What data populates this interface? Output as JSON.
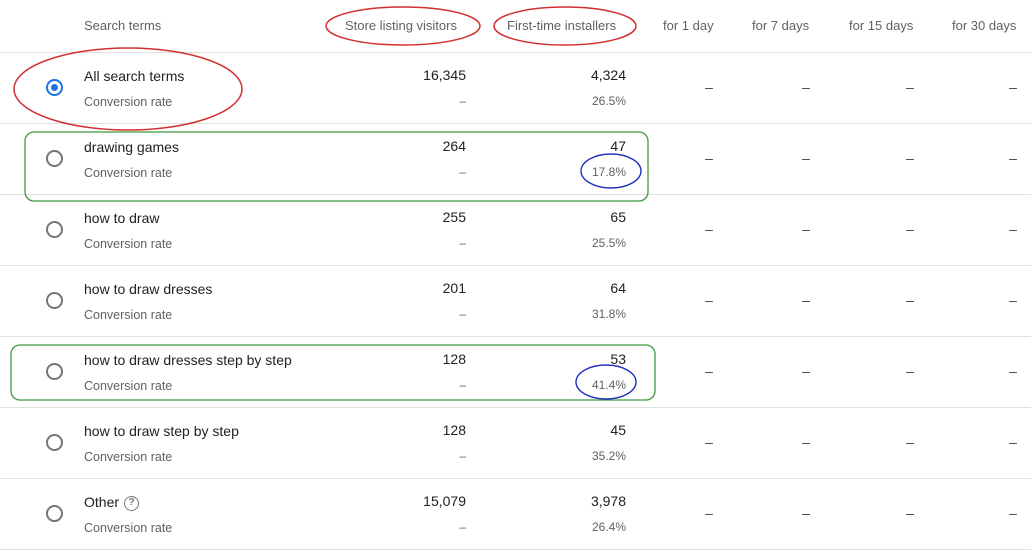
{
  "header": {
    "col_term": "Search terms",
    "col_visitors": "Store listing visitors",
    "col_installers": "First-time installers",
    "col_1day": "for 1 day",
    "col_7days": "for 7 days",
    "col_15days": "for 15 days",
    "col_30days": "for 30 days"
  },
  "rows": [
    {
      "term": "All search terms",
      "conv_label": "Conversion rate",
      "visitors": "16,345",
      "visitors_sub": "–",
      "installers": "4,324",
      "rate": "26.5%",
      "d1": "–",
      "d7": "–",
      "d15": "–",
      "d30": "–",
      "selected": true
    },
    {
      "term": "drawing games",
      "conv_label": "Conversion rate",
      "visitors": "264",
      "visitors_sub": "–",
      "installers": "47",
      "rate": "17.8%",
      "d1": "–",
      "d7": "–",
      "d15": "–",
      "d30": "–",
      "selected": false
    },
    {
      "term": "how to draw",
      "conv_label": "Conversion rate",
      "visitors": "255",
      "visitors_sub": "–",
      "installers": "65",
      "rate": "25.5%",
      "d1": "–",
      "d7": "–",
      "d15": "–",
      "d30": "–",
      "selected": false
    },
    {
      "term": "how to draw dresses",
      "conv_label": "Conversion rate",
      "visitors": "201",
      "visitors_sub": "–",
      "installers": "64",
      "rate": "31.8%",
      "d1": "–",
      "d7": "–",
      "d15": "–",
      "d30": "–",
      "selected": false
    },
    {
      "term": "how to draw dresses step by step",
      "conv_label": "Conversion rate",
      "visitors": "128",
      "visitors_sub": "–",
      "installers": "53",
      "rate": "41.4%",
      "d1": "–",
      "d7": "–",
      "d15": "–",
      "d30": "–",
      "selected": false
    },
    {
      "term": "how to draw step by step",
      "conv_label": "Conversion rate",
      "visitors": "128",
      "visitors_sub": "–",
      "installers": "45",
      "rate": "35.2%",
      "d1": "–",
      "d7": "–",
      "d15": "–",
      "d30": "–",
      "selected": false
    },
    {
      "term": "Other",
      "conv_label": "Conversion rate",
      "visitors": "15,079",
      "visitors_sub": "–",
      "installers": "3,978",
      "rate": "26.4%",
      "d1": "–",
      "d7": "–",
      "d15": "–",
      "d30": "–",
      "selected": false,
      "help_icon": "question-mark-circle-icon"
    }
  ],
  "annotations": {
    "red": "#d32f2f",
    "green": "#3f9a3f",
    "blue": "#1e2fbf"
  }
}
